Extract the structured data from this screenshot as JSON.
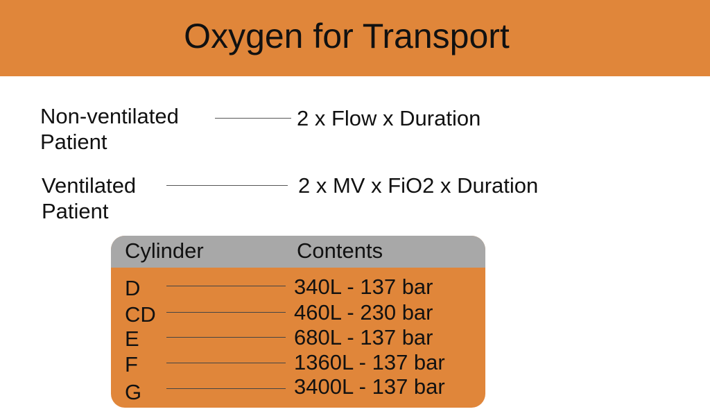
{
  "colors": {
    "accent": "#E0863A",
    "table_header": "#A8A8A8"
  },
  "header": {
    "title": "Oxygen for Transport"
  },
  "formulas": [
    {
      "label_line1": "Non-ventilated",
      "label_line2": "Patient",
      "formula": "2 x Flow x Duration"
    },
    {
      "label_line1": "Ventilated",
      "label_line2": "Patient",
      "formula": "2 x MV x FiO2 x Duration"
    }
  ],
  "table": {
    "headers": [
      "Cylinder",
      "Contents"
    ],
    "rows": [
      {
        "cylinder": "D",
        "contents": "340L - 137 bar"
      },
      {
        "cylinder": "CD",
        "contents": "460L - 230 bar"
      },
      {
        "cylinder": "E",
        "contents": "680L - 137 bar"
      },
      {
        "cylinder": "F",
        "contents": "1360L - 137 bar"
      },
      {
        "cylinder": "G",
        "contents": "3400L - 137 bar"
      }
    ]
  }
}
